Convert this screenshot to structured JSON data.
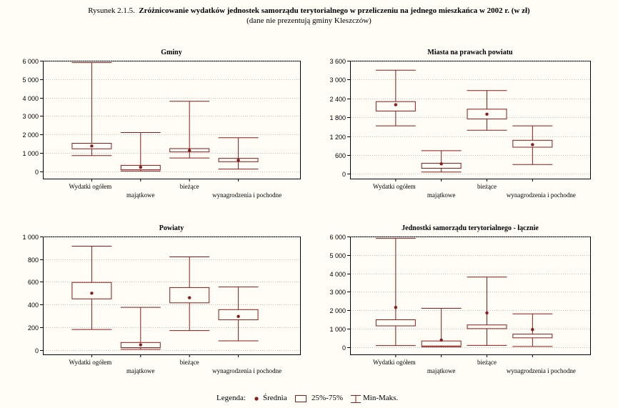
{
  "figure": {
    "label": "Rysunek 2.1.5.",
    "title": "Zróżnicowanie wydatków jednostek samorządu terytorialnego w przeliczeniu na jednego mieszkańca w 2002 r. (w zł)",
    "subtitle": "(dane nie prezentują gminy Kleszczów)"
  },
  "colors": {
    "box": "#8b1a1a",
    "grid": "#aaaaaa",
    "background": "#fffdf6"
  },
  "legend": {
    "label": "Legenda:",
    "mean": "Średnia",
    "box": "25%-75%",
    "whisker": "Min-Maks."
  },
  "chart_data": [
    {
      "type": "boxplot",
      "title": "Gminy",
      "categories": [
        "Wydatki ogółem",
        "majątkowe",
        "bieżące",
        "wynagrodzenia i pochodne"
      ],
      "ylim": [
        -400,
        6000
      ],
      "yticks": [
        0,
        1000,
        2000,
        3000,
        4000,
        5000,
        6000
      ],
      "ytick_labels": [
        "0",
        "1 000",
        "2 000",
        "3 000",
        "4 000",
        "5 000",
        "6 000"
      ],
      "grid": true,
      "boxes": [
        {
          "min": 850,
          "q1": 1220,
          "q3": 1520,
          "max": 5900,
          "mean": 1370
        },
        {
          "min": 10,
          "q1": 80,
          "q3": 320,
          "max": 2100,
          "mean": 220
        },
        {
          "min": 720,
          "q1": 1050,
          "q3": 1230,
          "max": 3800,
          "mean": 1130
        },
        {
          "min": 120,
          "q1": 520,
          "q3": 700,
          "max": 1820,
          "mean": 600
        }
      ]
    },
    {
      "type": "boxplot",
      "title": "Miasta na prawach powiatu",
      "categories": [
        "Wydatki ogółem",
        "majątkowe",
        "bieżące",
        "wynagrodzenia i pochodne"
      ],
      "ylim": [
        -150,
        3600
      ],
      "yticks": [
        0,
        600,
        1200,
        1800,
        2400,
        3000,
        3600
      ],
      "ytick_labels": [
        "0",
        "600",
        "1 200",
        "1 800",
        "2 400",
        "3 000",
        "3 600"
      ],
      "grid": true,
      "boxes": [
        {
          "min": 1530,
          "q1": 2000,
          "q3": 2300,
          "max": 3300,
          "mean": 2200
        },
        {
          "min": 60,
          "q1": 180,
          "q3": 340,
          "max": 740,
          "mean": 320
        },
        {
          "min": 1390,
          "q1": 1750,
          "q3": 2060,
          "max": 2650,
          "mean": 1900
        },
        {
          "min": 300,
          "q1": 850,
          "q3": 1070,
          "max": 1530,
          "mean": 930
        }
      ]
    },
    {
      "type": "boxplot",
      "title": "Powiaty",
      "categories": [
        "Wydatki ogółem",
        "majątkowe",
        "bieżące",
        "wynagrodzenia i pochodne"
      ],
      "ylim": [
        -40,
        1000
      ],
      "yticks": [
        0,
        200,
        400,
        600,
        800,
        1000
      ],
      "ytick_labels": [
        "0",
        "200",
        "400",
        "600",
        "800",
        "1 000"
      ],
      "grid": true,
      "boxes": [
        {
          "min": 180,
          "q1": 450,
          "q3": 595,
          "max": 915,
          "mean": 500
        },
        {
          "min": 5,
          "q1": 20,
          "q3": 65,
          "max": 375,
          "mean": 45
        },
        {
          "min": 170,
          "q1": 415,
          "q3": 550,
          "max": 820,
          "mean": 460
        },
        {
          "min": 80,
          "q1": 265,
          "q3": 355,
          "max": 555,
          "mean": 295
        }
      ]
    },
    {
      "type": "boxplot",
      "title": "Jednostki samorządu terytorialnego - łącznie",
      "categories": [
        "Wydatki ogółem",
        "majątkowe",
        "bieżące",
        "wynagrodzenia i pochodne"
      ],
      "ylim": [
        -400,
        6000
      ],
      "yticks": [
        0,
        1000,
        2000,
        3000,
        4000,
        5000,
        6000
      ],
      "ytick_labels": [
        "0",
        "1 000",
        "2 000",
        "3 000",
        "4 000",
        "5 000",
        "6 000"
      ],
      "grid": true,
      "boxes": [
        {
          "min": 80,
          "q1": 1150,
          "q3": 1480,
          "max": 5900,
          "mean": 2150
        },
        {
          "min": 5,
          "q1": 60,
          "q3": 330,
          "max": 2100,
          "mean": 380
        },
        {
          "min": 90,
          "q1": 1000,
          "q3": 1200,
          "max": 3800,
          "mean": 1850
        },
        {
          "min": 30,
          "q1": 500,
          "q3": 700,
          "max": 1800,
          "mean": 950
        }
      ]
    }
  ]
}
